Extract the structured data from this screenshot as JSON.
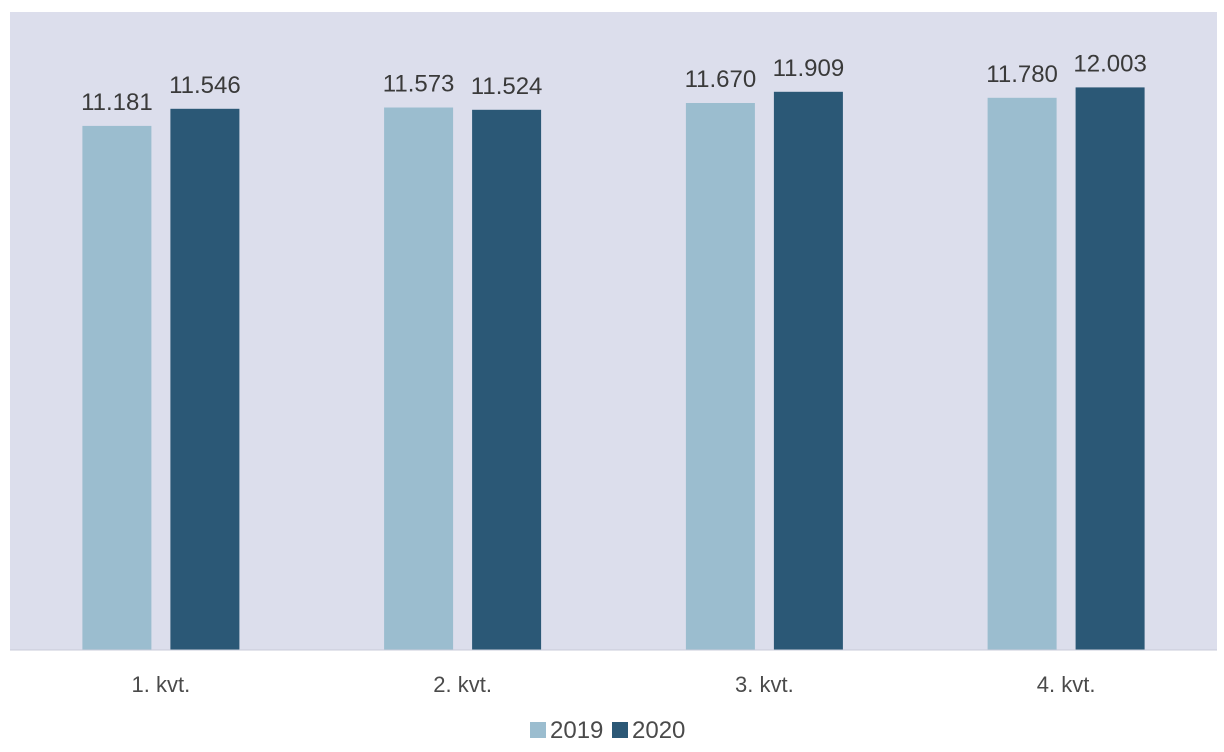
{
  "chart_data": {
    "type": "bar",
    "categories": [
      "1. kvt.",
      "2. kvt.",
      "3. kvt.",
      "4. kvt."
    ],
    "series": [
      {
        "name": "2019",
        "values": [
          11181,
          11573,
          11670,
          11780
        ],
        "labels": [
          "11.181",
          "11.573",
          "11.670",
          "11.780"
        ],
        "color": "#9bbdcf"
      },
      {
        "name": "2020",
        "values": [
          11546,
          11524,
          11909,
          12003
        ],
        "labels": [
          "11.546",
          "11.524",
          "11.909",
          "12.003"
        ],
        "color": "#2b5876"
      }
    ],
    "ylim": [
      0,
      12800
    ],
    "legend_position": "bottom-center",
    "grid": false,
    "y_axis_visible": false
  },
  "colors": {
    "plot_background": "#dcdeec",
    "baseline": "#c9cbd8",
    "label_text": "#3a3a3a",
    "category_text": "#4a4a4a"
  }
}
